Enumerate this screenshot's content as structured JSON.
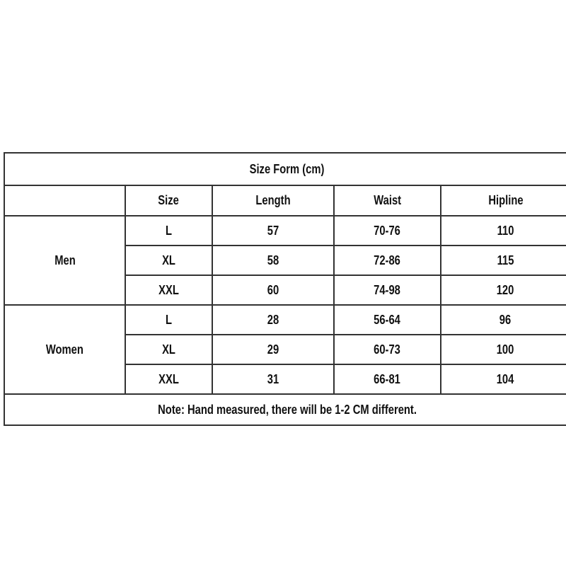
{
  "title": "Size Form (cm)",
  "headers": [
    "",
    "Size",
    "Length",
    "Waist",
    "Hipline"
  ],
  "groups": [
    {
      "label": "Men",
      "rows": [
        [
          "L",
          "57",
          "70-76",
          "110"
        ],
        [
          "XL",
          "58",
          "72-86",
          "115"
        ],
        [
          "XXL",
          "60",
          "74-98",
          "120"
        ]
      ]
    },
    {
      "label": "Women",
      "rows": [
        [
          "L",
          "28",
          "56-64",
          "96"
        ],
        [
          "XL",
          "29",
          "60-73",
          "100"
        ],
        [
          "XXL",
          "31",
          "66-81",
          "104"
        ]
      ]
    }
  ],
  "note": "Note: Hand measured, there will be 1-2 CM different."
}
